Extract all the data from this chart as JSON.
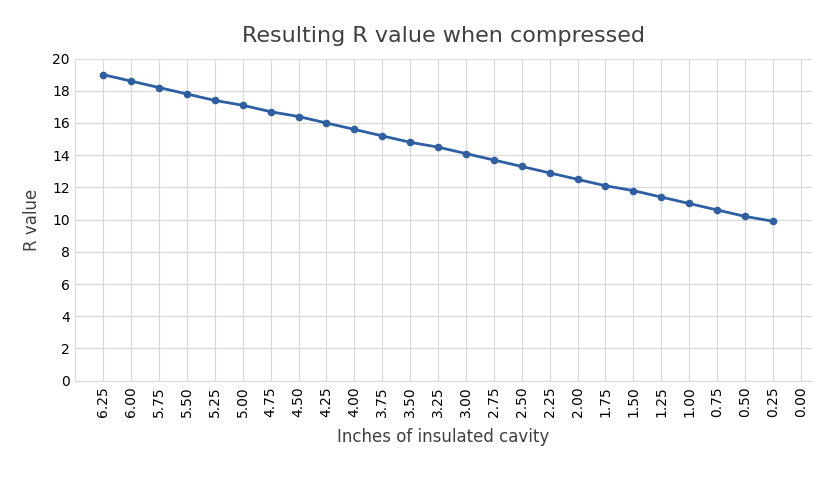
{
  "title": "Resulting R value when compressed",
  "xlabel": "Inches of insulated cavity",
  "ylabel": "R value",
  "x_values": [
    6.25,
    6.0,
    5.75,
    5.5,
    5.25,
    5.0,
    4.75,
    4.5,
    4.25,
    4.0,
    3.75,
    3.5,
    3.25,
    3.0,
    2.75,
    2.5,
    2.25,
    2.0,
    1.75,
    1.5,
    1.25,
    1.0,
    0.75,
    0.5,
    0.25
  ],
  "y_values": [
    19.0,
    18.6,
    18.2,
    17.8,
    17.4,
    17.1,
    16.7,
    16.4,
    16.0,
    15.6,
    15.2,
    14.8,
    14.5,
    14.1,
    13.7,
    13.3,
    12.9,
    12.5,
    12.1,
    11.8,
    11.4,
    11.0,
    10.6,
    10.2,
    9.9
  ],
  "line_color": "#2e5fa3",
  "marker_color": "#2e5fa3",
  "background_color": "#ffffff",
  "grid_color": "#d9d9d9",
  "ylim": [
    0,
    20
  ],
  "xlim_left": 6.5,
  "xlim_right": -0.1,
  "xtick_labels": [
    "6.25",
    "6.00",
    "5.75",
    "5.50",
    "5.25",
    "5.00",
    "4.75",
    "4.50",
    "4.25",
    "4.00",
    "3.75",
    "3.50",
    "3.25",
    "3.00",
    "2.75",
    "2.50",
    "2.25",
    "2.00",
    "1.75",
    "1.50",
    "1.25",
    "1.00",
    "0.75",
    "0.50",
    "0.25",
    "0.00"
  ],
  "xtick_positions": [
    6.25,
    6.0,
    5.75,
    5.5,
    5.25,
    5.0,
    4.75,
    4.5,
    4.25,
    4.0,
    3.75,
    3.5,
    3.25,
    3.0,
    2.75,
    2.5,
    2.25,
    2.0,
    1.75,
    1.5,
    1.25,
    1.0,
    0.75,
    0.5,
    0.25,
    0.0
  ],
  "title_fontsize": 16,
  "label_fontsize": 12,
  "tick_fontsize": 10,
  "figsize": [
    8.37,
    4.88
  ],
  "dpi": 100
}
